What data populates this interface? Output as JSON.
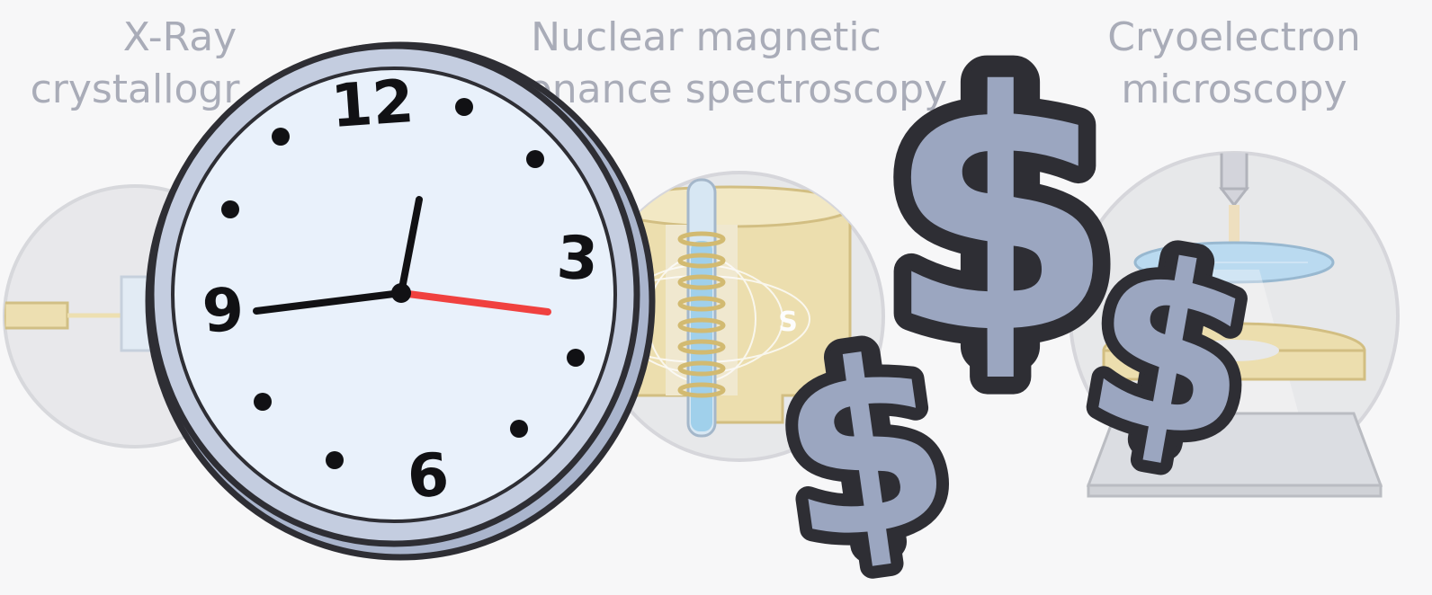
{
  "colors": {
    "background": "#f7f7f8",
    "faded_text": "#a9acb8",
    "circle_fill": "#e3e4e7",
    "circle_stroke": "#cdced3",
    "gold": "#ead79a",
    "gold_dark": "#d1b866",
    "dollar_fill": "#9ba6c0",
    "dollar_stroke": "#2e2e34",
    "clock_face": "#e9f1fb",
    "clock_rim": "#9aa7c2",
    "second_hand": "#f0413f"
  },
  "techniques": [
    {
      "title_line1": "X-Ray",
      "title_line2": "crystallogr"
    },
    {
      "title_line1": "Nuclear magnetic",
      "title_line2": "onance spectroscopy"
    },
    {
      "title_line1": "Cryoelectron",
      "title_line2": "microscopy"
    }
  ],
  "nmr_pole_label": "S",
  "clock": {
    "numerals": {
      "twelve": "12",
      "three": "3",
      "six": "6",
      "nine": "9"
    },
    "time_shown": {
      "hour": 12,
      "minute": 43,
      "second": 16
    }
  },
  "dollar_glyph": "$"
}
